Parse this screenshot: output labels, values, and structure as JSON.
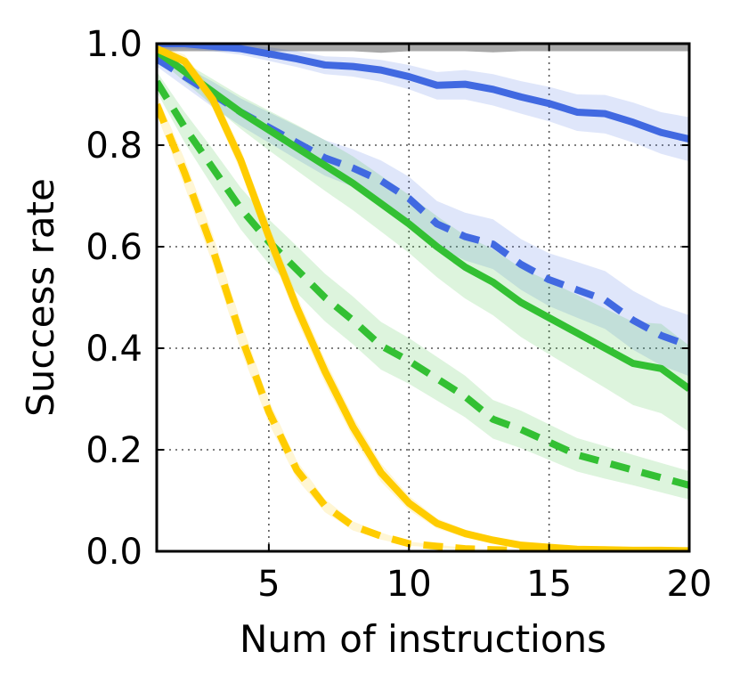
{
  "chart_data": {
    "type": "line",
    "title": "",
    "xlabel": "Num of instructions",
    "ylabel": "Success rate",
    "xlim": [
      1,
      20
    ],
    "ylim": [
      0.0,
      1.0
    ],
    "xticks": [
      5,
      10,
      15,
      20
    ],
    "xtick_labels": [
      "5",
      "10",
      "15",
      "20"
    ],
    "yticks": [
      0.0,
      0.2,
      0.4,
      0.6,
      0.8,
      1.0
    ],
    "ytick_labels": [
      "0.0",
      "0.2",
      "0.4",
      "0.6",
      "0.8",
      "1.0"
    ],
    "grid": true,
    "legend": "none",
    "x": [
      1,
      2,
      3,
      4,
      5,
      6,
      7,
      8,
      9,
      10,
      11,
      12,
      13,
      14,
      15,
      16,
      17,
      18,
      19,
      20
    ],
    "series": [
      {
        "name": "gray-solid",
        "color": "#999999",
        "dash": "solid",
        "values": [
          1.0,
          1.0,
          1.0,
          1.0,
          1.0,
          1.0,
          1.0,
          1.0,
          1.0,
          1.0,
          1.0,
          1.0,
          1.0,
          1.0,
          1.0,
          1.0,
          1.0,
          1.0,
          1.0,
          1.0
        ],
        "lower": [
          0.985,
          0.985,
          0.985,
          0.985,
          0.985,
          0.985,
          0.985,
          0.985,
          0.982,
          0.985,
          0.985,
          0.985,
          0.983,
          0.985,
          0.985,
          0.985,
          0.985,
          0.985,
          0.985,
          0.985
        ],
        "upper": [
          1.0,
          1.0,
          1.0,
          1.0,
          1.0,
          1.0,
          1.0,
          1.0,
          1.0,
          1.0,
          1.0,
          1.0,
          1.0,
          1.0,
          1.0,
          1.0,
          1.0,
          1.0,
          1.0,
          1.0
        ]
      },
      {
        "name": "blue-solid",
        "color": "#4169e1",
        "dash": "solid",
        "values": [
          1.0,
          1.0,
          0.995,
          0.99,
          0.98,
          0.97,
          0.958,
          0.955,
          0.948,
          0.935,
          0.918,
          0.92,
          0.91,
          0.895,
          0.882,
          0.865,
          0.862,
          0.845,
          0.825,
          0.812
        ],
        "lower": [
          0.99,
          0.99,
          0.985,
          0.978,
          0.966,
          0.954,
          0.94,
          0.935,
          0.925,
          0.91,
          0.89,
          0.89,
          0.878,
          0.862,
          0.847,
          0.828,
          0.823,
          0.805,
          0.783,
          0.768
        ],
        "upper": [
          1.0,
          1.0,
          1.0,
          1.0,
          0.993,
          0.985,
          0.975,
          0.973,
          0.968,
          0.958,
          0.944,
          0.948,
          0.94,
          0.926,
          0.915,
          0.9,
          0.899,
          0.884,
          0.865,
          0.855
        ]
      },
      {
        "name": "blue-dashed",
        "color": "#4169e1",
        "dash": "dashed",
        "values": [
          0.97,
          0.935,
          0.9,
          0.865,
          0.835,
          0.805,
          0.775,
          0.755,
          0.73,
          0.695,
          0.645,
          0.62,
          0.605,
          0.565,
          0.535,
          0.515,
          0.495,
          0.455,
          0.425,
          0.405
        ],
        "lower": [
          0.955,
          0.915,
          0.875,
          0.838,
          0.805,
          0.772,
          0.74,
          0.718,
          0.69,
          0.652,
          0.6,
          0.573,
          0.556,
          0.515,
          0.483,
          0.46,
          0.438,
          0.397,
          0.366,
          0.345
        ],
        "upper": [
          0.985,
          0.955,
          0.925,
          0.892,
          0.865,
          0.838,
          0.81,
          0.792,
          0.77,
          0.738,
          0.69,
          0.667,
          0.654,
          0.615,
          0.587,
          0.57,
          0.552,
          0.513,
          0.484,
          0.465
        ]
      },
      {
        "name": "green-solid",
        "color": "#33c033",
        "dash": "solid",
        "values": [
          0.985,
          0.945,
          0.905,
          0.865,
          0.83,
          0.795,
          0.76,
          0.725,
          0.685,
          0.645,
          0.6,
          0.56,
          0.53,
          0.49,
          0.46,
          0.43,
          0.4,
          0.37,
          0.36,
          0.32
        ],
        "lower": [
          0.972,
          0.925,
          0.878,
          0.832,
          0.79,
          0.75,
          0.71,
          0.672,
          0.63,
          0.588,
          0.54,
          0.498,
          0.465,
          0.422,
          0.388,
          0.355,
          0.322,
          0.288,
          0.272,
          0.235
        ],
        "upper": [
          0.995,
          0.963,
          0.93,
          0.897,
          0.868,
          0.84,
          0.81,
          0.778,
          0.74,
          0.702,
          0.66,
          0.622,
          0.595,
          0.558,
          0.532,
          0.505,
          0.478,
          0.452,
          0.448,
          0.405
        ]
      },
      {
        "name": "green-dashed",
        "color": "#33c033",
        "dash": "dashed",
        "values": [
          0.925,
          0.835,
          0.755,
          0.675,
          0.61,
          0.555,
          0.5,
          0.455,
          0.405,
          0.375,
          0.34,
          0.305,
          0.26,
          0.24,
          0.215,
          0.19,
          0.175,
          0.16,
          0.145,
          0.13
        ],
        "lower": [
          0.905,
          0.805,
          0.718,
          0.634,
          0.566,
          0.509,
          0.453,
          0.408,
          0.358,
          0.33,
          0.297,
          0.264,
          0.222,
          0.203,
          0.18,
          0.157,
          0.143,
          0.13,
          0.116,
          0.102
        ],
        "upper": [
          0.945,
          0.865,
          0.792,
          0.716,
          0.654,
          0.601,
          0.547,
          0.502,
          0.452,
          0.42,
          0.383,
          0.346,
          0.298,
          0.277,
          0.25,
          0.223,
          0.207,
          0.19,
          0.174,
          0.158
        ]
      },
      {
        "name": "yellow-solid",
        "color": "#ffcc00",
        "dash": "solid",
        "values": [
          0.99,
          0.965,
          0.89,
          0.77,
          0.62,
          0.48,
          0.355,
          0.245,
          0.155,
          0.095,
          0.055,
          0.035,
          0.022,
          0.012,
          0.008,
          0.004,
          0.003,
          0.002,
          0.002,
          0.001
        ],
        "lower": [
          0.982,
          0.952,
          0.872,
          0.748,
          0.597,
          0.456,
          0.332,
          0.224,
          0.137,
          0.081,
          0.045,
          0.027,
          0.016,
          0.008,
          0.005,
          0.002,
          0.001,
          0.001,
          0.001,
          0.0
        ],
        "upper": [
          0.998,
          0.978,
          0.908,
          0.792,
          0.643,
          0.504,
          0.378,
          0.266,
          0.173,
          0.109,
          0.065,
          0.043,
          0.028,
          0.016,
          0.011,
          0.006,
          0.005,
          0.003,
          0.003,
          0.002
        ]
      },
      {
        "name": "yellow-dashed",
        "color": "#ffcc00",
        "dash": "dashed",
        "values": [
          0.88,
          0.745,
          0.595,
          0.425,
          0.275,
          0.16,
          0.09,
          0.05,
          0.03,
          0.015,
          0.01,
          0.005,
          0.003,
          0.002,
          0.001,
          0.0,
          0.0,
          0.0,
          0.0,
          0.0
        ],
        "lower": [
          0.86,
          0.718,
          0.566,
          0.397,
          0.252,
          0.142,
          0.077,
          0.041,
          0.023,
          0.011,
          0.007,
          0.003,
          0.002,
          0.001,
          0.0,
          0.0,
          0.0,
          0.0,
          0.0,
          0.0
        ],
        "upper": [
          0.9,
          0.772,
          0.624,
          0.453,
          0.298,
          0.178,
          0.103,
          0.059,
          0.037,
          0.019,
          0.013,
          0.007,
          0.004,
          0.003,
          0.002,
          0.001,
          0.0,
          0.0,
          0.0,
          0.0
        ]
      }
    ]
  }
}
